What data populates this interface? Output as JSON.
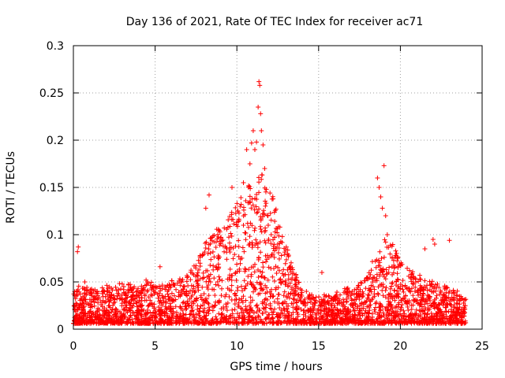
{
  "chart_data": {
    "type": "scatter",
    "title": "Day 136 of 2021, Rate Of TEC Index for receiver ac71",
    "xlabel": "GPS time / hours",
    "ylabel": "ROTI / TECUs",
    "xlim": [
      0,
      25
    ],
    "ylim": [
      0,
      0.3
    ],
    "x_ticks": [
      "0",
      "5",
      "10",
      "15",
      "20",
      "25"
    ],
    "y_ticks": [
      "0",
      "0.05",
      "0.1",
      "0.15",
      "0.2",
      "0.25",
      "0.3"
    ],
    "grid": true,
    "legend": "none",
    "marker": "plus",
    "color": "#ff0000",
    "series": [
      {
        "x": [
          0.0,
          0.2,
          0.3,
          0.5,
          0.7,
          1.0,
          1.5,
          2.0,
          2.5,
          3.0,
          3.5,
          4.0,
          4.5,
          5.0,
          5.5,
          6.0,
          6.5,
          7.0,
          7.5,
          8.0,
          8.5,
          9.0,
          9.5,
          10.0,
          10.5,
          11.0,
          11.5,
          12.0,
          12.5,
          13.0,
          13.5,
          14.0,
          14.5,
          15.0,
          15.5,
          16.0,
          16.5,
          17.0,
          17.5,
          18.0,
          18.5,
          19.0,
          19.5,
          20.0,
          20.5,
          21.0,
          21.5,
          22.0,
          22.5,
          23.0,
          23.5,
          24.0
        ],
        "y": [
          0.018,
          0.02,
          0.022,
          0.02,
          0.021,
          0.019,
          0.02,
          0.022,
          0.021,
          0.023,
          0.022,
          0.02,
          0.025,
          0.022,
          0.023,
          0.024,
          0.025,
          0.028,
          0.035,
          0.045,
          0.05,
          0.055,
          0.06,
          0.07,
          0.075,
          0.08,
          0.085,
          0.08,
          0.06,
          0.045,
          0.03,
          0.02,
          0.018,
          0.016,
          0.017,
          0.018,
          0.02,
          0.02,
          0.022,
          0.028,
          0.04,
          0.05,
          0.045,
          0.035,
          0.03,
          0.028,
          0.025,
          0.025,
          0.022,
          0.02,
          0.018,
          0.017
        ]
      }
    ],
    "outliers": {
      "x": [
        0.3,
        0.25,
        0.7,
        5.3,
        8.3,
        8.1,
        9.7,
        10.2,
        10.4,
        10.6,
        10.8,
        10.9,
        11.0,
        11.1,
        11.2,
        11.3,
        11.35,
        11.4,
        11.45,
        11.5,
        11.6,
        11.7,
        11.8,
        11.9,
        12.1,
        12.5,
        13.2,
        15.2,
        18.6,
        18.7,
        18.8,
        18.9,
        19.0,
        19.1,
        19.2,
        19.5,
        22.0,
        22.1,
        21.5,
        23.0
      ],
      "y": [
        0.087,
        0.082,
        0.05,
        0.066,
        0.142,
        0.128,
        0.15,
        0.13,
        0.155,
        0.19,
        0.175,
        0.197,
        0.21,
        0.19,
        0.198,
        0.235,
        0.262,
        0.258,
        0.228,
        0.21,
        0.195,
        0.17,
        0.148,
        0.12,
        0.1,
        0.09,
        0.065,
        0.06,
        0.16,
        0.15,
        0.14,
        0.128,
        0.173,
        0.12,
        0.1,
        0.075,
        0.095,
        0.09,
        0.085,
        0.094
      ]
    }
  }
}
